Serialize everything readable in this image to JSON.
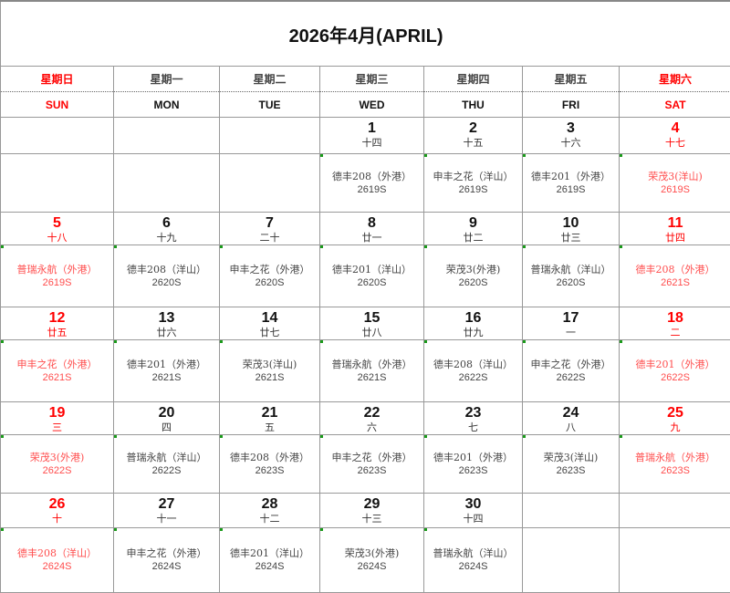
{
  "title": "2026年4月(APRIL)",
  "days_cn": [
    "星期日",
    "星期一",
    "星期二",
    "星期三",
    "星期四",
    "星期五",
    "星期六"
  ],
  "days_en": [
    "SUN",
    "MON",
    "TUE",
    "WED",
    "THU",
    "FRI",
    "SAT"
  ],
  "colors": {
    "weekend": "#ff0000",
    "weekend_event": "#ff4d4d",
    "text": "#444444"
  },
  "weeks": [
    [
      null,
      null,
      null,
      {
        "date": "1",
        "lunar": "十四",
        "ship": "德丰208（外港）",
        "voyage": "2619S"
      },
      {
        "date": "2",
        "lunar": "十五",
        "ship": "申丰之花（洋山）",
        "voyage": "2619S"
      },
      {
        "date": "3",
        "lunar": "十六",
        "ship": "德丰201（外港）",
        "voyage": "2619S"
      },
      {
        "date": "4",
        "lunar": "十七",
        "ship": "荣茂3(洋山)",
        "voyage": "2619S"
      }
    ],
    [
      {
        "date": "5",
        "lunar": "十八",
        "ship": "普瑞永航（外港）",
        "voyage": "2619S"
      },
      {
        "date": "6",
        "lunar": "十九",
        "ship": "德丰208（洋山）",
        "voyage": "2620S"
      },
      {
        "date": "7",
        "lunar": "二十",
        "ship": "申丰之花（外港）",
        "voyage": "2620S"
      },
      {
        "date": "8",
        "lunar": "廿一",
        "ship": "德丰201（洋山）",
        "voyage": "2620S"
      },
      {
        "date": "9",
        "lunar": "廿二",
        "ship": "荣茂3(外港)",
        "voyage": "2620S"
      },
      {
        "date": "10",
        "lunar": "廿三",
        "ship": "普瑞永航（洋山）",
        "voyage": "2620S"
      },
      {
        "date": "11",
        "lunar": "廿四",
        "ship": "德丰208（外港）",
        "voyage": "2621S"
      }
    ],
    [
      {
        "date": "12",
        "lunar": "廿五",
        "ship": "申丰之花（外港）",
        "voyage": "2621S"
      },
      {
        "date": "13",
        "lunar": "廿六",
        "ship": "德丰201（外港）",
        "voyage": "2621S"
      },
      {
        "date": "14",
        "lunar": "廿七",
        "ship": "荣茂3(洋山)",
        "voyage": "2621S"
      },
      {
        "date": "15",
        "lunar": "廿八",
        "ship": "普瑞永航（外港）",
        "voyage": "2621S"
      },
      {
        "date": "16",
        "lunar": "廿九",
        "ship": "德丰208（洋山）",
        "voyage": "2622S"
      },
      {
        "date": "17",
        "lunar": "一",
        "ship": "申丰之花（外港）",
        "voyage": "2622S"
      },
      {
        "date": "18",
        "lunar": "二",
        "ship": "德丰201（外港）",
        "voyage": "2622S"
      }
    ],
    [
      {
        "date": "19",
        "lunar": "三",
        "ship": "荣茂3(外港)",
        "voyage": "2622S"
      },
      {
        "date": "20",
        "lunar": "四",
        "ship": "普瑞永航（洋山）",
        "voyage": "2622S"
      },
      {
        "date": "21",
        "lunar": "五",
        "ship": "德丰208（外港）",
        "voyage": "2623S"
      },
      {
        "date": "22",
        "lunar": "六",
        "ship": "申丰之花（外港）",
        "voyage": "2623S"
      },
      {
        "date": "23",
        "lunar": "七",
        "ship": "德丰201（外港）",
        "voyage": "2623S"
      },
      {
        "date": "24",
        "lunar": "八",
        "ship": "荣茂3(洋山)",
        "voyage": "2623S"
      },
      {
        "date": "25",
        "lunar": "九",
        "ship": "普瑞永航（外港）",
        "voyage": "2623S"
      }
    ],
    [
      {
        "date": "26",
        "lunar": "十",
        "ship": "德丰208（洋山）",
        "voyage": "2624S"
      },
      {
        "date": "27",
        "lunar": "十一",
        "ship": "申丰之花（外港）",
        "voyage": "2624S"
      },
      {
        "date": "28",
        "lunar": "十二",
        "ship": "德丰201（洋山）",
        "voyage": "2624S"
      },
      {
        "date": "29",
        "lunar": "十三",
        "ship": "荣茂3(外港)",
        "voyage": "2624S"
      },
      {
        "date": "30",
        "lunar": "十四",
        "ship": "普瑞永航（洋山）",
        "voyage": "2624S"
      },
      null,
      null
    ]
  ]
}
